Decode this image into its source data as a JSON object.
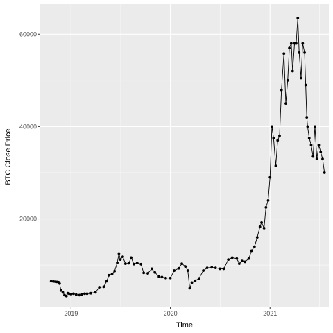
{
  "chart_data": {
    "type": "line",
    "title": "",
    "xlabel": "Time",
    "ylabel": "BTC Close Price",
    "grid": true,
    "legend": "none",
    "colors": {
      "panel_background": "#EBEBEB",
      "grid_major": "#FFFFFF",
      "series": "#000000",
      "tick_text": "#4D4D4D"
    },
    "xlim": [
      "2018-09-10",
      "2021-08-05"
    ],
    "ylim": [
      1000,
      66500
    ],
    "x_ticks": [
      {
        "date": "2019-01-01",
        "label": "2019"
      },
      {
        "date": "2020-01-01",
        "label": "2020"
      },
      {
        "date": "2021-01-01",
        "label": "2021"
      }
    ],
    "y_ticks": [
      {
        "value": 20000,
        "label": "20000"
      },
      {
        "value": 40000,
        "label": "40000"
      },
      {
        "value": 60000,
        "label": "60000"
      }
    ],
    "series": [
      {
        "x": [
          "2018-10-20",
          "2018-10-28",
          "2018-11-04",
          "2018-11-10",
          "2018-11-16",
          "2018-11-20",
          "2018-11-25",
          "2018-12-02",
          "2018-12-08",
          "2018-12-15",
          "2018-12-20",
          "2018-12-25",
          "2019-01-01",
          "2019-01-10",
          "2019-01-20",
          "2019-02-01",
          "2019-02-10",
          "2019-02-20",
          "2019-03-01",
          "2019-03-15",
          "2019-04-01",
          "2019-04-15",
          "2019-05-01",
          "2019-05-12",
          "2019-05-20",
          "2019-06-01",
          "2019-06-10",
          "2019-06-20",
          "2019-06-26",
          "2019-07-01",
          "2019-07-10",
          "2019-07-20",
          "2019-08-01",
          "2019-08-10",
          "2019-08-20",
          "2019-09-01",
          "2019-09-15",
          "2019-09-25",
          "2019-10-10",
          "2019-10-25",
          "2019-11-05",
          "2019-11-20",
          "2019-12-01",
          "2019-12-15",
          "2020-01-01",
          "2020-01-15",
          "2020-02-01",
          "2020-02-12",
          "2020-02-25",
          "2020-03-05",
          "2020-03-12",
          "2020-03-20",
          "2020-04-01",
          "2020-04-15",
          "2020-05-01",
          "2020-05-15",
          "2020-06-01",
          "2020-06-15",
          "2020-07-01",
          "2020-07-15",
          "2020-08-01",
          "2020-08-15",
          "2020-09-01",
          "2020-09-10",
          "2020-09-20",
          "2020-10-01",
          "2020-10-15",
          "2020-10-25",
          "2020-11-05",
          "2020-11-15",
          "2020-11-25",
          "2020-12-01",
          "2020-12-10",
          "2020-12-17",
          "2020-12-25",
          "2021-01-01",
          "2021-01-08",
          "2021-01-14",
          "2021-01-22",
          "2021-01-29",
          "2021-02-05",
          "2021-02-12",
          "2021-02-21",
          "2021-02-28",
          "2021-03-07",
          "2021-03-13",
          "2021-03-20",
          "2021-03-25",
          "2021-04-01",
          "2021-04-07",
          "2021-04-13",
          "2021-04-18",
          "2021-04-25",
          "2021-05-01",
          "2021-05-08",
          "2021-05-12",
          "2021-05-16",
          "2021-05-19",
          "2021-05-25",
          "2021-06-01",
          "2021-06-08",
          "2021-06-15",
          "2021-06-22",
          "2021-06-29",
          "2021-07-06",
          "2021-07-13",
          "2021-07-20"
        ],
        "values": [
          6500,
          6450,
          6400,
          6350,
          6300,
          6000,
          4500,
          4100,
          3500,
          3300,
          3900,
          3800,
          3700,
          3800,
          3600,
          3500,
          3600,
          3800,
          3800,
          3900,
          4100,
          5200,
          5300,
          6500,
          7800,
          8100,
          8700,
          10500,
          12500,
          11200,
          11800,
          10300,
          10400,
          11600,
          10200,
          10500,
          10200,
          8300,
          8200,
          9200,
          8400,
          7500,
          7400,
          7200,
          7200,
          8800,
          9300,
          10300,
          9700,
          8800,
          5000,
          6200,
          6600,
          7100,
          8800,
          9400,
          9500,
          9400,
          9200,
          9200,
          11200,
          11600,
          11400,
          10300,
          10900,
          10700,
          11400,
          13100,
          14000,
          16000,
          18300,
          19200,
          18000,
          22500,
          24000,
          29000,
          40000,
          37500,
          31500,
          37000,
          38000,
          47900,
          55800,
          45000,
          50000,
          57000,
          58000,
          52000,
          58000,
          58000,
          63500,
          56000,
          50500,
          58000,
          56000,
          49000,
          42000,
          40000,
          37500,
          36000,
          33500,
          40000,
          33000,
          36000,
          34500,
          33000,
          30000
        ]
      }
    ]
  }
}
